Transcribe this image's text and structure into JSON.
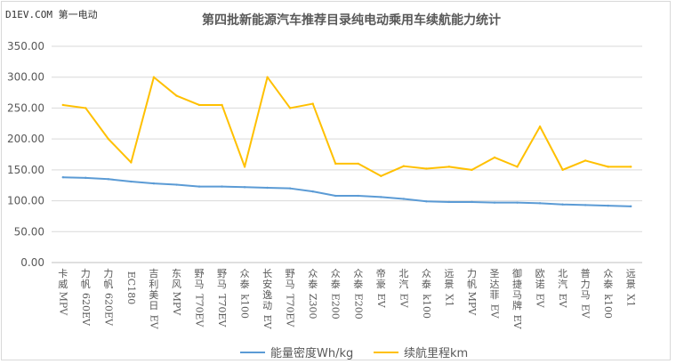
{
  "watermark": "D1EV.COM 第一电动",
  "chart_data": {
    "type": "line",
    "title": "第四批新能源汽车推荐目录纯电动乘用车续航能力统计",
    "xlabel": "",
    "ylabel": "",
    "ylim": [
      0,
      350
    ],
    "yticks": [
      "0.00",
      "50.00",
      "100.00",
      "150.00",
      "200.00",
      "250.00",
      "300.00",
      "350.00"
    ],
    "grid": true,
    "legend_position": "bottom",
    "categories": [
      "卡威MPV",
      "力帆620EV",
      "力帆620EV",
      "EC180",
      "吉利美日EV",
      "东风MPV",
      "野马T70 EV",
      "野马T70 EV",
      "众泰k100",
      "长安逸动EV",
      "野马T70 EV",
      "众泰Z300",
      "众泰E200",
      "众泰E200",
      "帝豪EV",
      "北汽EV",
      "众泰k100",
      "远景X1",
      "力帆MPV",
      "圣达菲EV",
      "御捷马牌EV",
      "欧诺EV",
      "北汽EV",
      "普力马EV",
      "众泰k100",
      "远景X1"
    ],
    "series": [
      {
        "name": "能量密度Wh/kg",
        "color": "#5b9bd5",
        "values": [
          138,
          137,
          135,
          131,
          128,
          126,
          123,
          123,
          122,
          121,
          120,
          115,
          108,
          108,
          106,
          103,
          99,
          98,
          98,
          97,
          97,
          96,
          94,
          93,
          92,
          91
        ]
      },
      {
        "name": "续航里程km",
        "color": "#ffc000",
        "values": [
          255,
          250,
          200,
          162,
          300,
          270,
          255,
          255,
          155,
          300,
          250,
          257,
          160,
          160,
          140,
          156,
          152,
          155,
          150,
          170,
          155,
          220,
          150,
          165,
          155,
          155
        ]
      }
    ]
  }
}
